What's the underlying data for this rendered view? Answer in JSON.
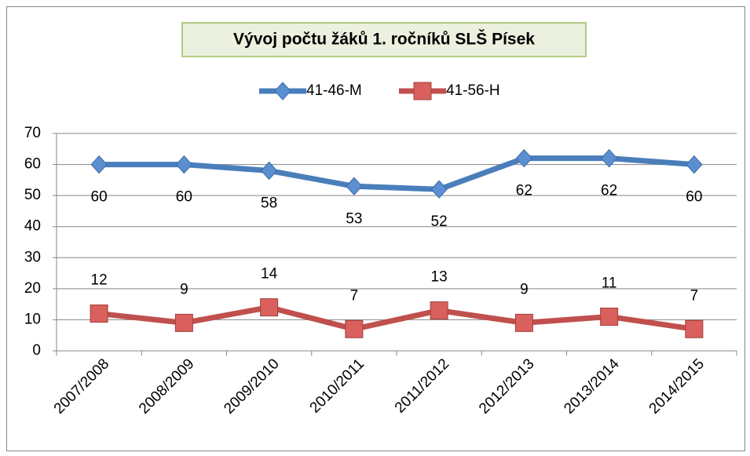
{
  "chart_data": {
    "type": "line",
    "title": "Vývoj počtu žáků 1. ročníků SLŠ Písek",
    "categories": [
      "2007/2008",
      "2008/2009",
      "2009/2010",
      "2010/2011",
      "2011/2012",
      "2012/2013",
      "2013/2014",
      "2014/2015"
    ],
    "series": [
      {
        "name": "41-46-M",
        "color": "#4a7ebb",
        "values": [
          60,
          60,
          58,
          53,
          52,
          62,
          62,
          60
        ]
      },
      {
        "name": "41-56-H",
        "color": "#c0504d",
        "values": [
          12,
          9,
          14,
          7,
          13,
          9,
          11,
          7
        ]
      }
    ],
    "ylim": [
      0,
      70
    ],
    "yticks": [
      0,
      10,
      20,
      30,
      40,
      50,
      60,
      70
    ],
    "grid": true,
    "legend": "top"
  }
}
